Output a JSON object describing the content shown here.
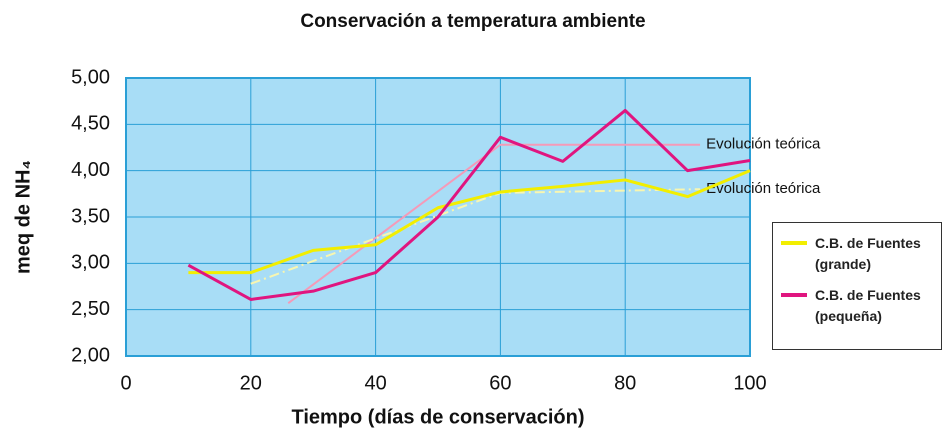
{
  "chart_data": {
    "type": "line",
    "title": "Conservación a temperatura ambiente",
    "x_label": "Tiempo (días de conservación)",
    "y_label": "meq de NH₄",
    "xlim": [
      0,
      100
    ],
    "xticks": [
      0,
      20,
      40,
      60,
      80,
      100
    ],
    "ylim": [
      2,
      5
    ],
    "yticks": [
      {
        "value": 2,
        "label": "2,00"
      },
      {
        "value": 2.5,
        "label": "2,50"
      },
      {
        "value": 3,
        "label": "3,00"
      },
      {
        "value": 3.5,
        "label": "3,50"
      },
      {
        "value": 4,
        "label": "4,00"
      },
      {
        "value": 4.5,
        "label": "4,50"
      },
      {
        "value": 5,
        "label": "5,00"
      }
    ],
    "grid": true,
    "series": [
      {
        "name": "C.B. de Fuentes (grande)",
        "color": "#f2ee00",
        "x": [
          10,
          20,
          30,
          40,
          50,
          60,
          70,
          80,
          90,
          100
        ],
        "values": [
          2.9,
          2.9,
          3.14,
          3.2,
          3.6,
          3.77,
          3.83,
          3.9,
          3.72,
          4.0
        ]
      },
      {
        "name": "C.B. de Fuentes (pequeña)",
        "color": "#e0157f",
        "x": [
          10,
          20,
          30,
          40,
          50,
          60,
          70,
          80,
          90,
          100
        ],
        "values": [
          2.98,
          2.61,
          2.7,
          2.9,
          3.5,
          4.36,
          4.1,
          4.65,
          4.0,
          4.11
        ]
      }
    ],
    "trend_lines": [
      {
        "name": "Evolución teórica",
        "color": "#f59ab8",
        "x": [
          26,
          60,
          92
        ],
        "values": [
          2.57,
          4.28,
          4.28
        ]
      },
      {
        "name": "Evolución teórica",
        "color": "#f8f6b0",
        "x": [
          20,
          60,
          92
        ],
        "values": [
          2.78,
          3.76,
          3.8
        ]
      }
    ]
  }
}
